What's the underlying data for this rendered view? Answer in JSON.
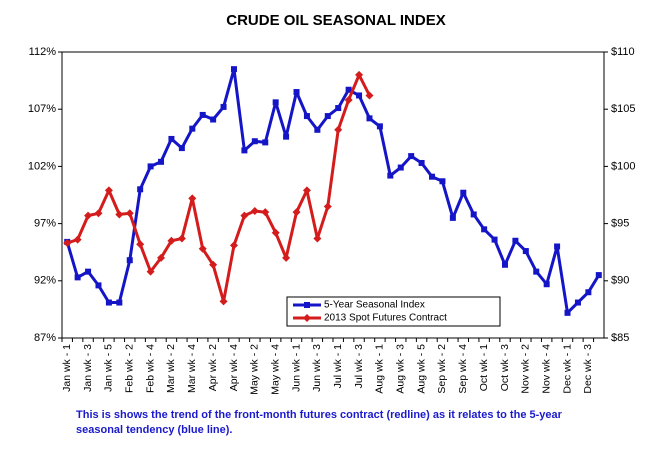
{
  "chart_data": {
    "type": "line",
    "title": "CRUDE OIL SEASONAL INDEX",
    "note": [
      "This is shows the trend of the front-month futures contract (redline) as it relates to the 5-year",
      "seasonal tendency (blue line)."
    ],
    "categories": [
      "Jan wk - 1",
      null,
      "Jan wk - 3",
      null,
      "Jan wk - 5",
      null,
      "Feb wk - 2",
      null,
      "Feb wk - 4",
      null,
      "Mar wk - 2",
      null,
      "Mar wk - 4",
      null,
      "Apr wk - 2",
      null,
      "Apr wk - 4",
      null,
      "May wk - 2",
      null,
      "May wk - 4",
      null,
      "Jun wk - 1",
      null,
      "Jun wk - 3",
      null,
      "Jul wk - 1",
      null,
      "Jul wk - 3",
      null,
      "Aug wk - 1",
      null,
      "Aug wk - 3",
      null,
      "Aug wk - 5",
      null,
      "Sep wk - 2",
      null,
      "Sep wk - 4",
      null,
      "Oct wk - 1",
      null,
      "Oct wk - 3",
      null,
      "Nov wk - 2",
      null,
      "Nov wk - 4",
      null,
      "Dec wk - 1",
      null,
      "Dec wk - 3",
      null
    ],
    "series": [
      {
        "name": "5-Year Seasonal Index",
        "color": "#1515c8",
        "marker": "square",
        "values": [
          95.4,
          92.3,
          92.8,
          91.6,
          90.1,
          90.1,
          93.8,
          100.0,
          102.0,
          102.4,
          104.4,
          103.6,
          105.3,
          106.5,
          106.1,
          107.2,
          110.5,
          103.4,
          104.2,
          104.1,
          107.6,
          104.6,
          108.5,
          106.4,
          105.2,
          106.4,
          107.1,
          108.7,
          108.2,
          106.2,
          105.5,
          101.2,
          101.9,
          102.9,
          102.3,
          101.1,
          100.7,
          97.5,
          99.7,
          97.8,
          96.5,
          95.6,
          93.4,
          95.5,
          94.6,
          92.8,
          91.7,
          95.0,
          89.2,
          90.1,
          91.0,
          92.5
        ]
      },
      {
        "name": "2013 Spot Futures Contract",
        "color": "#d41c1c",
        "marker": "diamond",
        "axis": "y2",
        "values": [
          93.3,
          93.6,
          95.7,
          95.9,
          97.9,
          95.8,
          95.9,
          93.2,
          90.8,
          92.0,
          93.5,
          93.7,
          97.2,
          92.8,
          91.4,
          88.2,
          93.1,
          95.7,
          96.1,
          96.0,
          94.2,
          92.0,
          96.0,
          97.9,
          93.7,
          96.5,
          103.2,
          105.8,
          108.0,
          106.2,
          null,
          null,
          null,
          null,
          null,
          null,
          null,
          null,
          null,
          null,
          null,
          null,
          null,
          null,
          null,
          null,
          null,
          null,
          null,
          null,
          null,
          null
        ]
      }
    ],
    "ylim": [
      87,
      112
    ],
    "yticks": [
      {
        "value": 87,
        "label": "87%"
      },
      {
        "value": 92,
        "label": "92%"
      },
      {
        "value": 97,
        "label": "97%"
      },
      {
        "value": 102,
        "label": "102%"
      },
      {
        "value": 107,
        "label": "107%"
      },
      {
        "value": 112,
        "label": "112%"
      }
    ],
    "y2lim": [
      85,
      110
    ],
    "y2ticks": [
      {
        "value": 85,
        "label": "$85"
      },
      {
        "value": 90,
        "label": "$90"
      },
      {
        "value": 95,
        "label": "$95"
      },
      {
        "value": 100,
        "label": "$100"
      },
      {
        "value": 105,
        "label": "$105"
      },
      {
        "value": 110,
        "label": "$110"
      }
    ],
    "grid": false
  }
}
